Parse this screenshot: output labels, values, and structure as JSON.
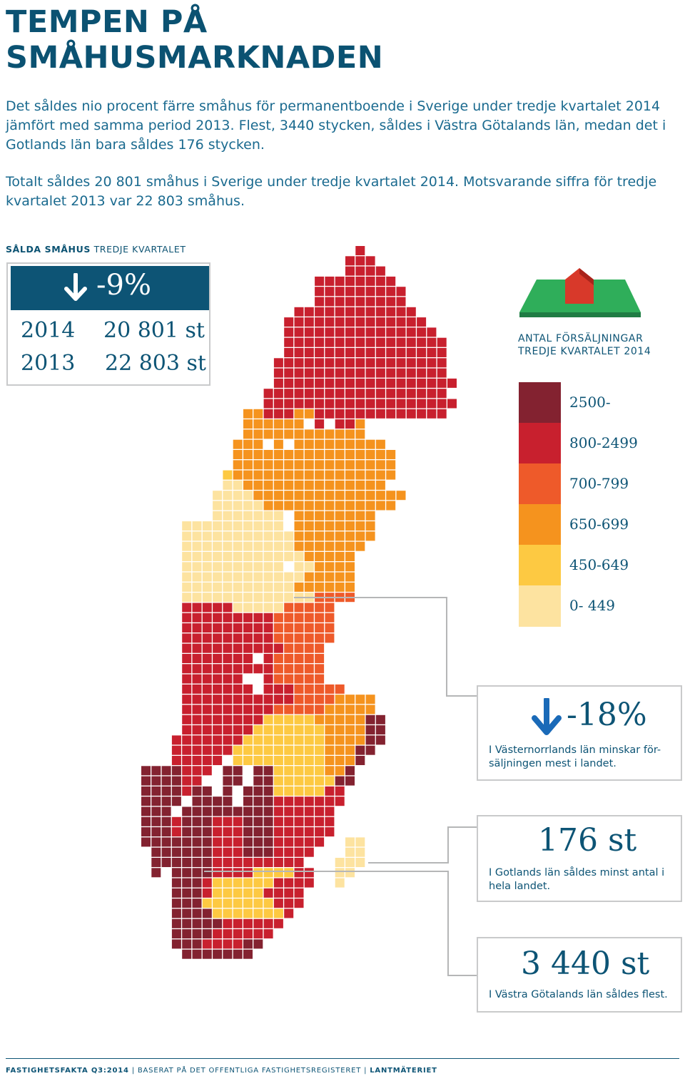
{
  "title": {
    "line1": "TEMPEN PÅ",
    "line2": "SMÅHUSMARKNADEN"
  },
  "intro": {
    "p1": "Det såldes nio procent färre småhus för permanentboende i Sverige under tredje kvartalet 2014 jämfört med samma period 2013. Flest, 3440 stycken, såldes i Västra Götalands län, medan det i Gotlands län bara såldes 176 stycken.",
    "p2": "Totalt såldes 20 801 småhus i Sverige under tredje kvartalet 2014. Motsvarande siffra för tredje kvartalet 2013 var 22 803 småhus."
  },
  "section_label": {
    "bold": "SÅLDA SMÅHUS",
    "rest": "TREDJE KVARTALET"
  },
  "summary": {
    "change": "-9%",
    "rows": [
      {
        "year": "2014",
        "value": "20 801 st"
      },
      {
        "year": "2013",
        "value": "22 803 st"
      }
    ]
  },
  "colors": {
    "brand": "#0d5475",
    "tiers": [
      "#fde3a0",
      "#fdc942",
      "#f5931e",
      "#ee5a2a",
      "#c8202e",
      "#832230"
    ],
    "house_roof": "#d8392a",
    "house_ground": "#2fae5a"
  },
  "chart_data": {
    "type": "heatmap",
    "title": "ANTAL FÖRSÄLJNINGAR TREDJE KVARTALET 2014",
    "legend": [
      {
        "label": "2500-",
        "tier": 5
      },
      {
        "label": "800-2499",
        "tier": 4
      },
      {
        "label": "700-799",
        "tier": 3
      },
      {
        "label": "650-699",
        "tier": 2
      },
      {
        "label": "450-649",
        "tier": 1
      },
      {
        "label": "0- 449",
        "tier": 0
      }
    ],
    "highlighted": [
      {
        "county": "Västernorrlands län",
        "change_pct": -18
      },
      {
        "county": "Gotlands län",
        "sold": 176
      },
      {
        "county": "Västra Götalands län",
        "sold": 3440
      }
    ]
  },
  "callouts": [
    {
      "icon": "down-arrow-icon",
      "big": "-18%",
      "text": "I Västernorrlands län minskar för-säljningen mest i landet."
    },
    {
      "big": "176 st",
      "text": "I Gotlands län såldes minst antal i hela landet."
    },
    {
      "big": "3 440 st",
      "text": "I Västra Götalands län såldes flest."
    }
  ],
  "footer": {
    "bold1": "FASTIGHETSFAKTA Q3:2014",
    "middle": "BASERAT PÅ DET OFFENTLIGA FASTIGHETSREGISTERET",
    "bold2": "LANTMÄTERIET"
  }
}
